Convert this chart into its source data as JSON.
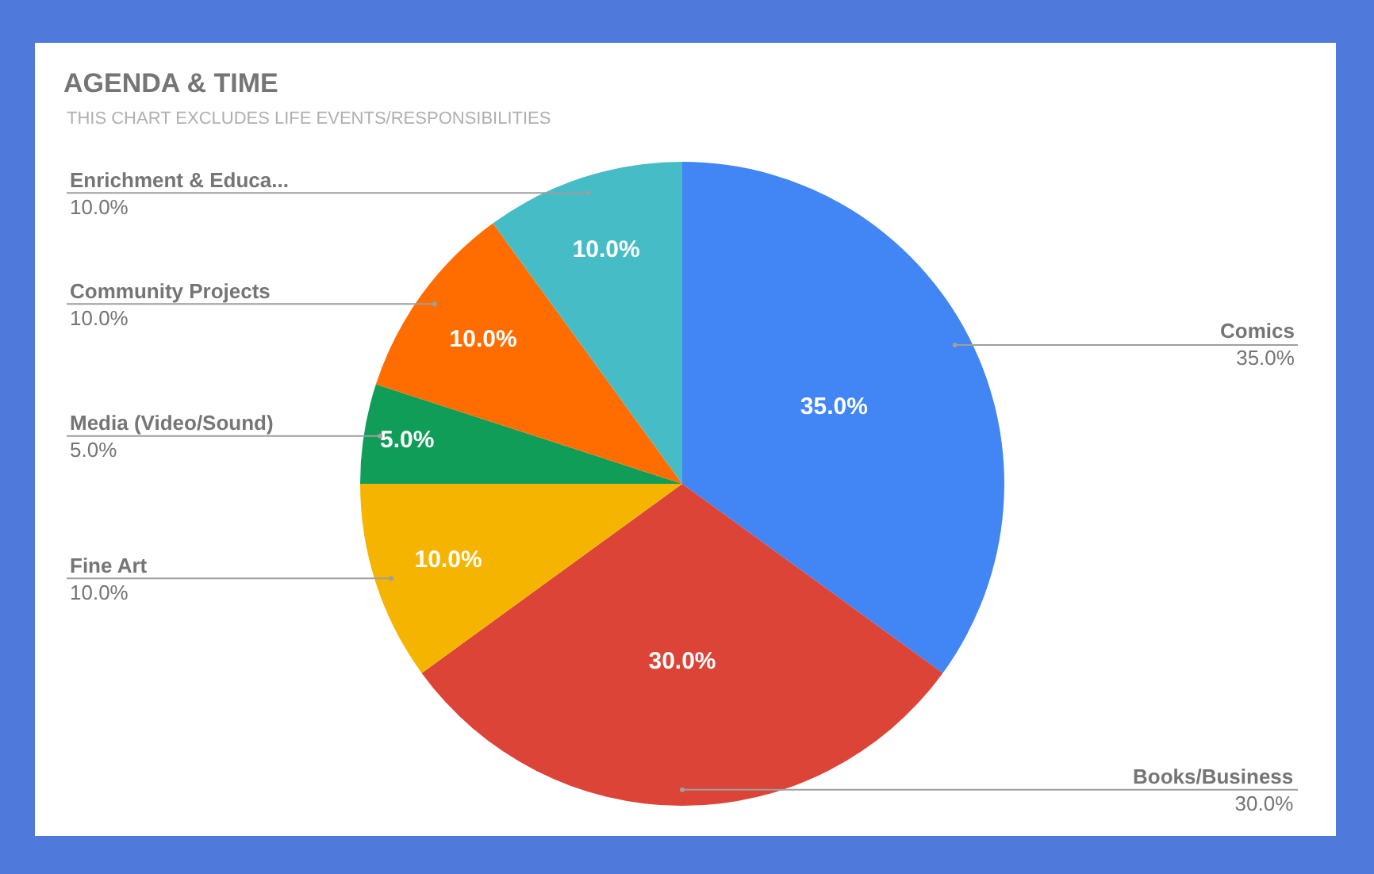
{
  "chart_data": {
    "type": "pie",
    "title": "AGENDA & TIME",
    "annotations": [
      "THIS CHART EXCLUDES LIFE EVENTS/RESPONSIBILITIES"
    ],
    "categories": [
      "Comics",
      "Books/Business",
      "Fine Art",
      "Media (Video/Sound)",
      "Community Projects",
      "Enrichment & Educa..."
    ],
    "values": [
      35,
      30,
      10,
      5,
      10,
      10
    ],
    "colors": [
      "#4285f4",
      "#db4437",
      "#f4b400",
      "#0f9d58",
      "#ff6d01",
      "#46bdc6"
    ],
    "value_labels": [
      "35.0%",
      "30.0%",
      "10.0%",
      "5.0%",
      "10.0%",
      "10.0%"
    ]
  }
}
